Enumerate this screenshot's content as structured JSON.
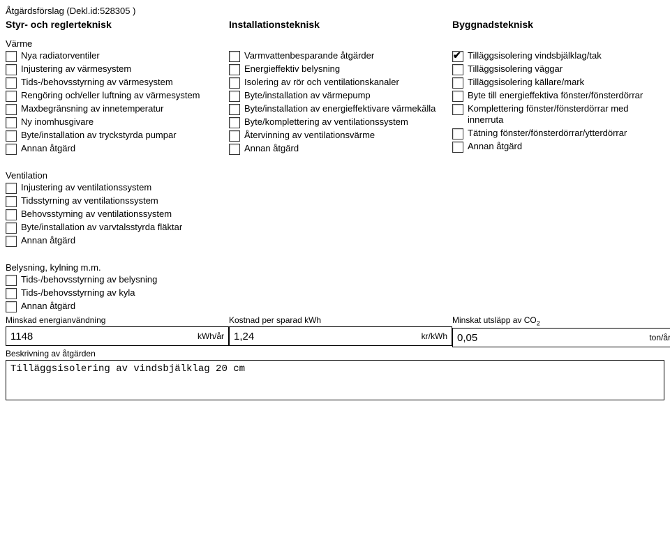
{
  "header": {
    "title": "Åtgärdsförslag (Dekl.id:528305 )"
  },
  "columns": {
    "col1": {
      "head": "Styr- och reglerteknisk",
      "section1_label": "Värme",
      "items": [
        {
          "label": "Nya radiatorventiler",
          "checked": false
        },
        {
          "label": "Injustering av värmesystem",
          "checked": false
        },
        {
          "label": "Tids-/behovsstyrning av värmesystem",
          "checked": false
        },
        {
          "label": "Rengöring och/eller luftning av värmesystem",
          "checked": false
        },
        {
          "label": "Maxbegränsning av innetemperatur",
          "checked": false
        },
        {
          "label": "Ny inomhusgivare",
          "checked": false
        },
        {
          "label": "Byte/installation av tryckstyrda pumpar",
          "checked": false
        },
        {
          "label": "Annan åtgärd",
          "checked": false
        }
      ],
      "section2_label": "Ventilation",
      "items2": [
        {
          "label": "Injustering av ventilationssystem",
          "checked": false
        },
        {
          "label": "Tidsstyrning av ventilationssystem",
          "checked": false
        },
        {
          "label": "Behovsstyrning av ventilationssystem",
          "checked": false
        },
        {
          "label": "Byte/installation av varvtalsstyrda fläktar",
          "checked": false
        },
        {
          "label": "Annan åtgärd",
          "checked": false
        }
      ],
      "section3_label": "Belysning, kylning m.m.",
      "items3": [
        {
          "label": "Tids-/behovsstyrning av belysning",
          "checked": false
        },
        {
          "label": "Tids-/behovsstyrning av kyla",
          "checked": false
        },
        {
          "label": "Annan åtgärd",
          "checked": false
        }
      ]
    },
    "col2": {
      "head": "Installationsteknisk",
      "items": [
        {
          "label": "Varmvattenbesparande åtgärder",
          "checked": false
        },
        {
          "label": "Energieffektiv belysning",
          "checked": false
        },
        {
          "label": "Isolering av rör och ventilationskanaler",
          "checked": false
        },
        {
          "label": "Byte/installation av värmepump",
          "checked": false
        },
        {
          "label": "Byte/installation av energieffektivare värmekälla",
          "checked": false
        },
        {
          "label": "Byte/komplettering av ventilationssystem",
          "checked": false
        },
        {
          "label": "Återvinning av ventilationsvärme",
          "checked": false
        },
        {
          "label": "Annan åtgärd",
          "checked": false
        }
      ]
    },
    "col3": {
      "head": "Byggnadsteknisk",
      "items": [
        {
          "label": "Tilläggsisolering vindsbjälklag/tak",
          "checked": true
        },
        {
          "label": "Tilläggsisolering väggar",
          "checked": false
        },
        {
          "label": "Tilläggsisolering källare/mark",
          "checked": false
        },
        {
          "label": "Byte till energieffektiva fönster/fönsterdörrar",
          "checked": false
        },
        {
          "label": "Komplettering fönster/fönsterdörrar med innerruta",
          "checked": false
        },
        {
          "label": "Tätning fönster/fönsterdörrar/ytterdörrar",
          "checked": false
        },
        {
          "label": "Annan åtgärd",
          "checked": false
        }
      ]
    }
  },
  "fields": {
    "f1": {
      "label": "Minskad energianvändning",
      "value": "1148",
      "unit": "kWh/år"
    },
    "f2": {
      "label": "Kostnad per sparad kWh",
      "value": "1,24",
      "unit": "kr/kWh"
    },
    "f3": {
      "label_pre": "Minskat utsläpp av CO",
      "label_sub": "2",
      "value": "0,05",
      "unit": "ton/år"
    }
  },
  "description": {
    "label": "Beskrivning av åtgärden",
    "value": "Tilläggsisolering av vindsbjälklag 20 cm"
  }
}
